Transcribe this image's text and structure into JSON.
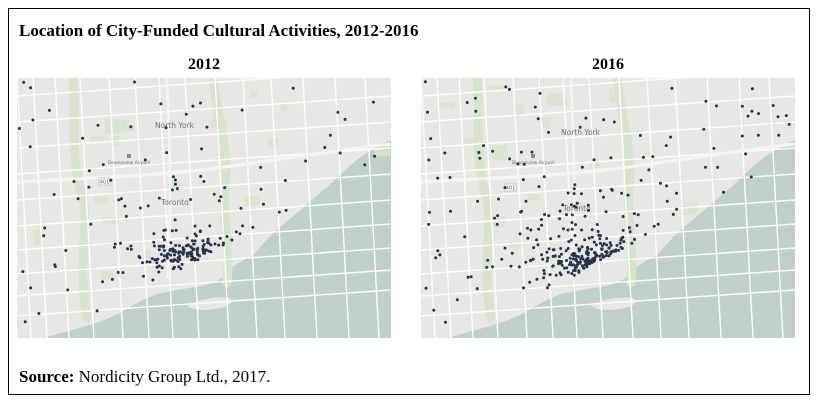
{
  "figure": {
    "title": "Location of City-Funded Cultural Activities, 2012-2016",
    "source_label": "Source:",
    "source_text": " Nordicity Group Ltd., 2017."
  },
  "colors": {
    "land": "#e7e8e4",
    "water": "#bfcfcc",
    "road": "#ffffff",
    "park": "#d7e3cc",
    "point": "#263449",
    "map_label": "#707070"
  },
  "maps": [
    {
      "year": "2012",
      "place_labels": [
        "North York",
        "Toronto"
      ],
      "map_marker_labels": [
        "Downsview Airport",
        "401"
      ]
    },
    {
      "year": "2016",
      "place_labels": [
        "North York",
        "Toronto"
      ],
      "map_marker_labels": [
        "Downsview Airport",
        "401"
      ]
    }
  ]
}
